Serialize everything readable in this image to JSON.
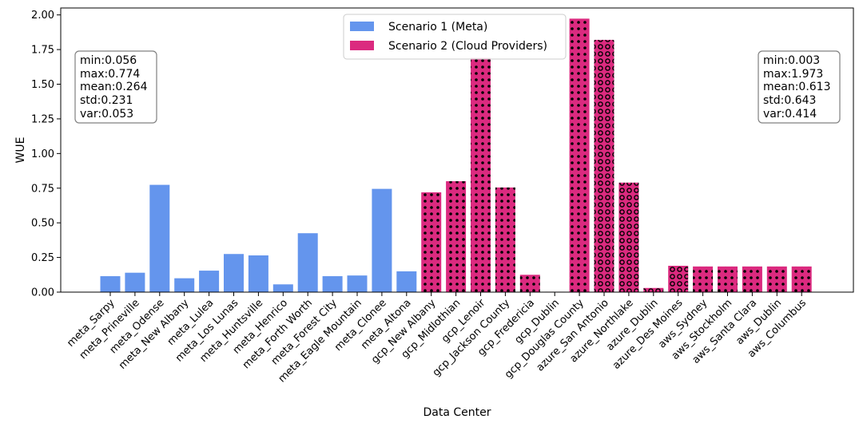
{
  "chart_data": {
    "type": "bar",
    "title": "",
    "xlabel": "Data Center",
    "ylabel": "WUE",
    "ylim": [
      0,
      2.05
    ],
    "yticks": [
      "0.00",
      "0.25",
      "0.50",
      "0.75",
      "1.00",
      "1.25",
      "1.50",
      "1.75",
      "2.00"
    ],
    "categories": [
      "meta_Sarpy",
      "meta_Prineville",
      "meta_Odense",
      "meta_New Albany",
      "meta_Lulea",
      "meta_Los Lunas",
      "meta_Huntsville",
      "meta_Henrico",
      "meta_Forth Worth",
      "meta_Forest City",
      "meta_Eagle Mountain",
      "meta_Clonee",
      "meta_Altona",
      "gcp_New Albany",
      "gcp_Midlothian",
      "gcp_Lenoir",
      "gcp_Jackson County",
      "gcp_Fredericia",
      "gcp_Dublin",
      "gcp_Douglas County",
      "azure_San Antonio",
      "azure_Northlake",
      "azure_Dublin",
      "azure_Des Moines",
      "aws_Sydney",
      "aws_Stockholm",
      "aws_Santa Clara",
      "aws_Dublin",
      "aws_Columbus"
    ],
    "series": [
      {
        "name": "Scenario 1 (Meta)",
        "color": "#6495ED",
        "values": [
          0.115,
          0.14,
          0.774,
          0.1,
          0.155,
          0.275,
          0.265,
          0.056,
          0.425,
          0.115,
          0.12,
          0.745,
          0.15,
          null,
          null,
          null,
          null,
          null,
          null,
          null,
          null,
          null,
          null,
          null,
          null,
          null,
          null,
          null,
          null
        ]
      },
      {
        "name": "Scenario 2 (Cloud Providers)",
        "color": "#DB2A7F",
        "values": [
          null,
          null,
          null,
          null,
          null,
          null,
          null,
          null,
          null,
          null,
          null,
          null,
          null,
          0.72,
          0.8,
          1.69,
          0.755,
          0.125,
          0.003,
          1.973,
          1.82,
          0.79,
          0.03,
          0.19,
          0.185,
          0.185,
          0.185,
          0.185,
          0.185
        ]
      }
    ],
    "legend": [
      "Scenario 1 (Meta)",
      "Scenario 2 (Cloud Providers)"
    ],
    "legend_position": "top-center",
    "grid": false,
    "annotations": [
      {
        "position": "top-left",
        "lines": [
          "min:0.056",
          "max:0.774",
          "mean:0.264",
          "std:0.231",
          "var:0.053"
        ]
      },
      {
        "position": "top-right",
        "lines": [
          "min:0.003",
          "max:1.973",
          "mean:0.613",
          "std:0.643",
          "var:0.414"
        ]
      }
    ]
  }
}
